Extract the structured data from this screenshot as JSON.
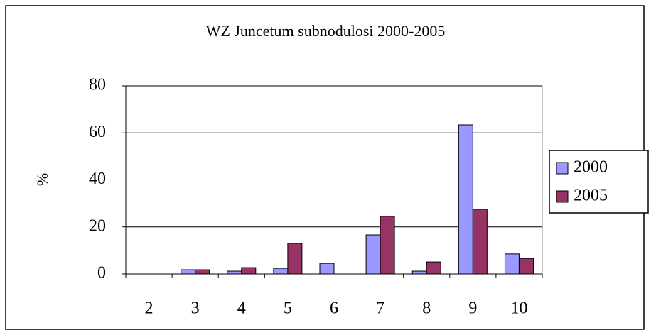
{
  "chart_data": {
    "type": "bar",
    "title": "WZ Juncetum subnodulosi 2000-2005",
    "y_label": "%",
    "categories": [
      "2",
      "3",
      "4",
      "5",
      "6",
      "7",
      "8",
      "9",
      "10"
    ],
    "series": [
      {
        "name": "2000",
        "color": "#9999ff",
        "values": [
          0,
          1.8,
          1.2,
          2.4,
          4.5,
          16.6,
          1.2,
          63.4,
          8.5
        ]
      },
      {
        "name": "2005",
        "color": "#993366",
        "values": [
          0,
          1.8,
          2.7,
          13,
          0,
          24.5,
          5.1,
          27.5,
          6.6
        ]
      }
    ],
    "ylim": [
      0,
      80
    ],
    "yticks": [
      0,
      20,
      40,
      60,
      80
    ],
    "grid": true,
    "legend": "right"
  }
}
